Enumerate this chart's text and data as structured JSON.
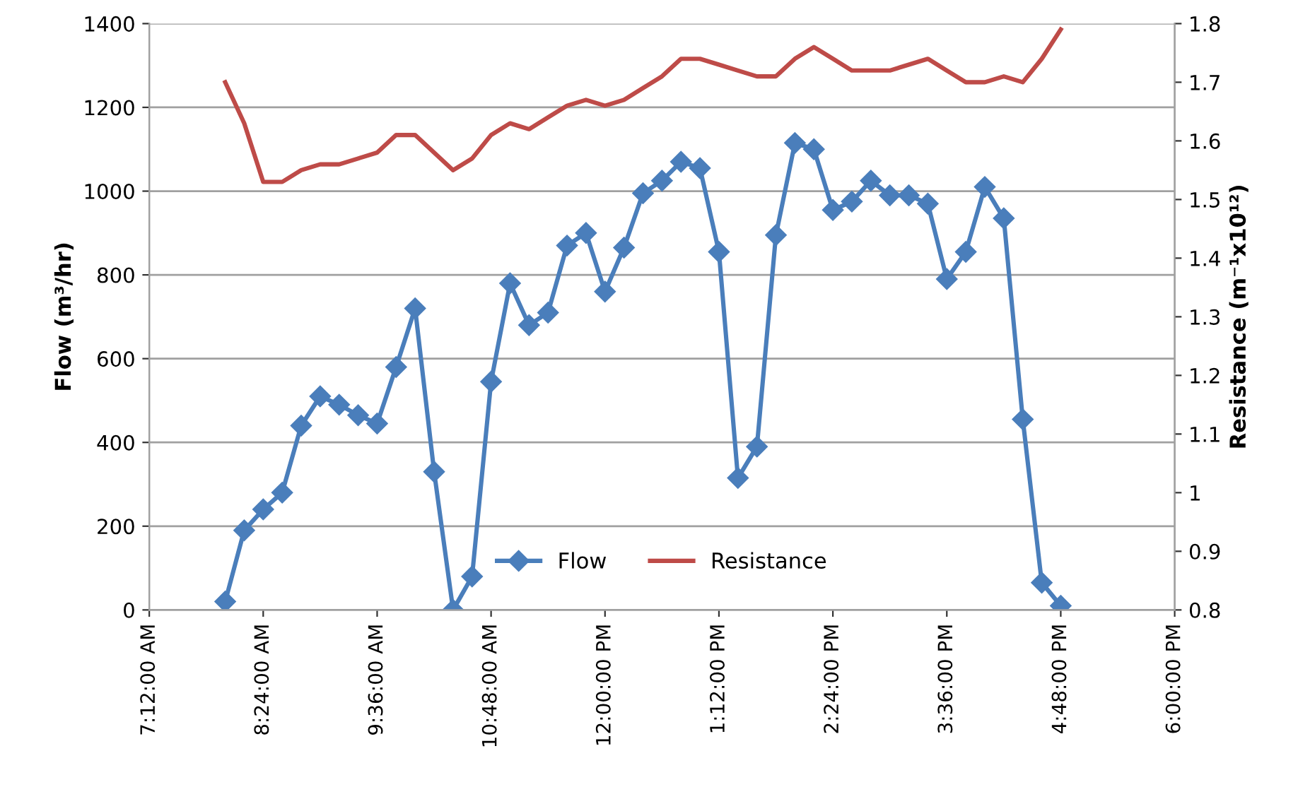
{
  "chart_data": {
    "type": "line",
    "x": [
      8.0,
      8.2,
      8.4,
      8.6,
      8.8,
      9.0,
      9.2,
      9.4,
      9.6,
      9.8,
      10.0,
      10.2,
      10.4,
      10.6,
      10.8,
      11.0,
      11.2,
      11.4,
      11.6,
      11.8,
      12.0,
      12.2,
      12.4,
      12.6,
      12.8,
      13.0,
      13.2,
      13.4,
      13.6,
      13.8,
      14.0,
      14.2,
      14.4,
      14.6,
      14.8,
      15.0,
      15.2,
      15.4,
      15.6,
      15.8,
      16.0,
      16.2,
      16.4,
      16.6,
      16.8
    ],
    "series": [
      {
        "name": "Flow",
        "color": "#4a7ebb",
        "marker": "diamond",
        "values": [
          20,
          190,
          240,
          280,
          440,
          510,
          490,
          465,
          445,
          580,
          720,
          330,
          0,
          80,
          545,
          780,
          680,
          710,
          870,
          900,
          760,
          865,
          995,
          1025,
          1070,
          1055,
          855,
          315,
          390,
          895,
          1115,
          1100,
          955,
          975,
          1025,
          990,
          990,
          970,
          790,
          855,
          1010,
          935,
          455,
          65,
          10
        ]
      },
      {
        "name": "Resistance",
        "color": "#be4b48",
        "marker": "none",
        "axis": "y2",
        "values": [
          1.7,
          1.63,
          1.53,
          1.53,
          1.55,
          1.56,
          1.56,
          1.57,
          1.58,
          1.61,
          1.61,
          1.58,
          1.55,
          1.57,
          1.61,
          1.63,
          1.62,
          1.64,
          1.66,
          1.67,
          1.66,
          1.67,
          1.69,
          1.71,
          1.74,
          1.74,
          1.73,
          1.72,
          1.71,
          1.71,
          1.74,
          1.76,
          1.74,
          1.72,
          1.72,
          1.72,
          1.73,
          1.74,
          1.72,
          1.7,
          1.7,
          1.71,
          1.7,
          1.74,
          1.79
        ]
      }
    ],
    "ylabel": "Flow (m³/hr)",
    "y2label": "Resistance (m⁻¹x10¹²)",
    "xlim": [
      7.2,
      18.0
    ],
    "xticks": [
      {
        "value": 7.2,
        "label": "7:12:00 AM"
      },
      {
        "value": 8.4,
        "label": "8:24:00 AM"
      },
      {
        "value": 9.6,
        "label": "9:36:00 AM"
      },
      {
        "value": 10.8,
        "label": "10:48:00 AM"
      },
      {
        "value": 12.0,
        "label": "12:00:00 PM"
      },
      {
        "value": 13.2,
        "label": "1:12:00 PM"
      },
      {
        "value": 14.4,
        "label": "2:24:00 PM"
      },
      {
        "value": 15.6,
        "label": "3:36:00 PM"
      },
      {
        "value": 16.8,
        "label": "4:48:00 PM"
      },
      {
        "value": 18.0,
        "label": "6:00:00 PM"
      }
    ],
    "ylim": [
      0,
      1400
    ],
    "yticks": [
      0,
      200,
      400,
      600,
      800,
      1000,
      1200,
      1400
    ],
    "y2lim": [
      0.8,
      1.8
    ],
    "y2ticks": [
      0.8,
      0.9,
      1,
      1.1,
      1.2,
      1.3,
      1.4,
      1.5,
      1.6,
      1.7,
      1.8
    ],
    "grid": "y",
    "legend": "bottom"
  }
}
